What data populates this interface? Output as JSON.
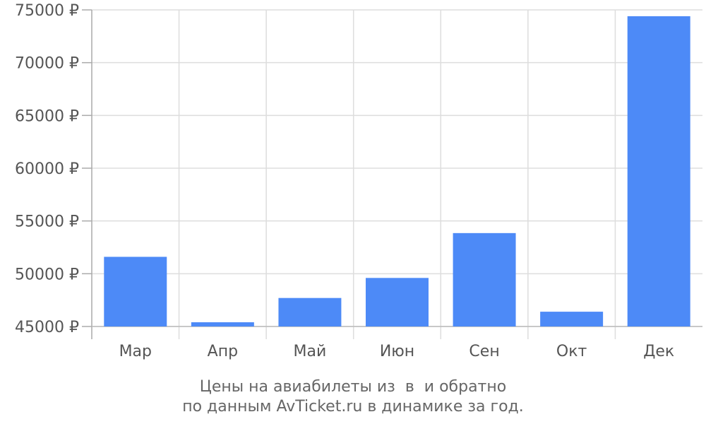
{
  "chart_data": {
    "type": "bar",
    "categories": [
      "Мар",
      "Апр",
      "Май",
      "Июн",
      "Сен",
      "Окт",
      "Дек"
    ],
    "values": [
      51600,
      45400,
      47700,
      49600,
      53850,
      46400,
      74400
    ],
    "ylim": [
      45000,
      75000
    ],
    "yticks": [
      45000,
      50000,
      55000,
      60000,
      65000,
      70000,
      75000
    ],
    "ytick_labels": [
      "45000 ₽",
      "50000 ₽",
      "55000 ₽",
      "60000 ₽",
      "65000 ₽",
      "70000 ₽",
      "75000 ₽"
    ],
    "bar_color": "#4d8af7",
    "grid": true
  },
  "caption": {
    "line1": "Цены на авиабилеты из  в  и обратно",
    "line2": "по данным AvTicket.ru в динамике за год."
  }
}
